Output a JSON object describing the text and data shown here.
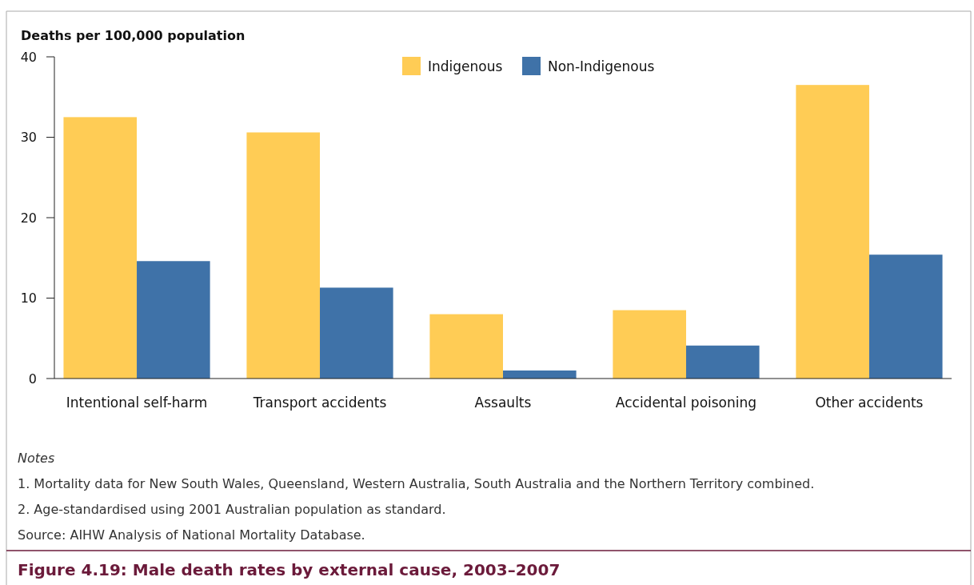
{
  "chart_data": {
    "type": "bar",
    "title": "Figure 4.19: Male death rates by external cause, 2003–2007",
    "ylabel": "Deaths per 100,000 population",
    "categories": [
      "Intentional self-harm",
      "Transport accidents",
      "Assaults",
      "Accidental poisoning",
      "Other accidents"
    ],
    "series": [
      {
        "name": "Indigenous",
        "color": "#ffcc55",
        "values": [
          32.5,
          30.6,
          8.0,
          8.5,
          36.5
        ]
      },
      {
        "name": "Non-Indigenous",
        "color": "#3f72a8",
        "values": [
          14.6,
          11.3,
          1.0,
          4.1,
          15.4
        ]
      }
    ],
    "ylim": [
      0,
      40
    ],
    "yticks": [
      0,
      10,
      20,
      30,
      40
    ],
    "grid": false,
    "legend": "top",
    "annotations": [
      "Notes",
      "1.   Mortality data for New South Wales, Queensland, Western Australia, South Australia and the Northern Territory combined.",
      "2.   Age-standardised using 2001 Australian population as standard.",
      "Source: AIHW Analysis of National Mortality Database."
    ]
  }
}
